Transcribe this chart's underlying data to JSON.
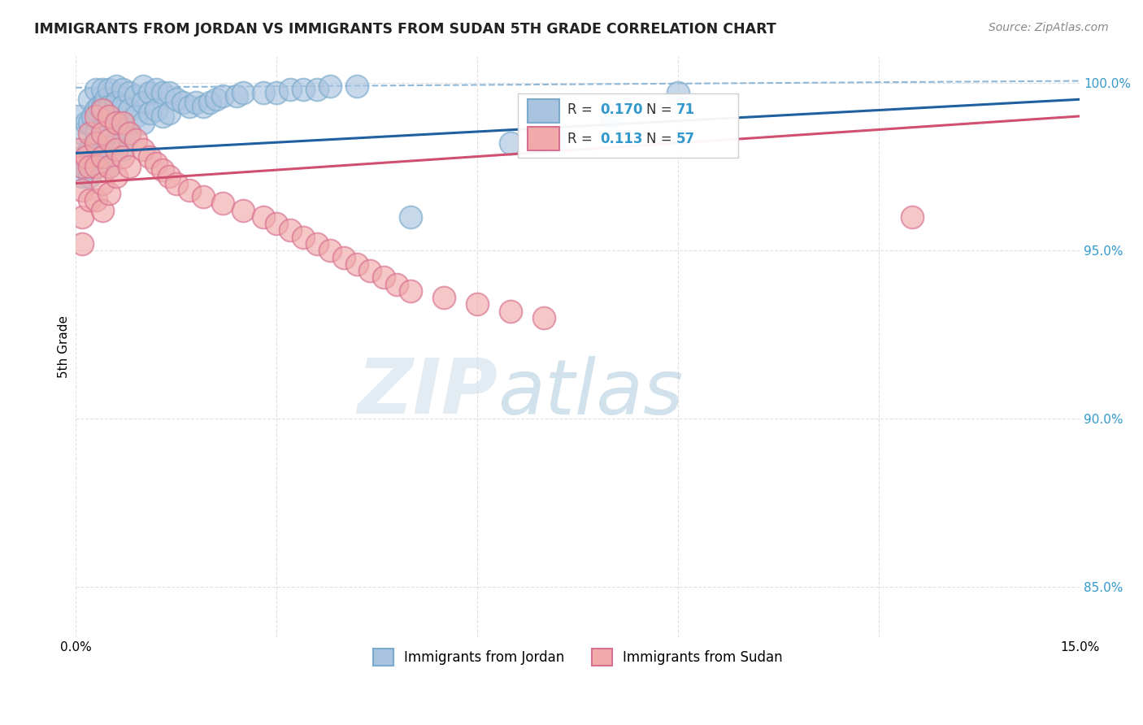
{
  "title": "IMMIGRANTS FROM JORDAN VS IMMIGRANTS FROM SUDAN 5TH GRADE CORRELATION CHART",
  "source_text": "Source: ZipAtlas.com",
  "ylabel": "5th Grade",
  "xlim": [
    0.0,
    0.15
  ],
  "ylim": [
    0.835,
    1.008
  ],
  "yticks": [
    0.85,
    0.9,
    0.95,
    1.0
  ],
  "yticklabels": [
    "85.0%",
    "90.0%",
    "95.0%",
    "100.0%"
  ],
  "background_color": "#ffffff",
  "grid_color": "#dddddd",
  "jordan_color": "#aac4e0",
  "jordan_edge_color": "#7aabcc",
  "sudan_color": "#f0aaaa",
  "sudan_edge_color": "#d87090",
  "jordan_line_color": "#2060a0",
  "sudan_line_color": "#d05070",
  "dashed_line_color": "#90b8d8",
  "watermark_zip": "ZIP",
  "watermark_atlas": "atlas",
  "jordan_x": [
    0.0005,
    0.001,
    0.001,
    0.001,
    0.0015,
    0.0015,
    0.002,
    0.002,
    0.002,
    0.002,
    0.0025,
    0.003,
    0.003,
    0.003,
    0.003,
    0.0035,
    0.004,
    0.004,
    0.004,
    0.004,
    0.0045,
    0.005,
    0.005,
    0.005,
    0.005,
    0.005,
    0.006,
    0.006,
    0.006,
    0.006,
    0.007,
    0.007,
    0.007,
    0.007,
    0.008,
    0.008,
    0.008,
    0.009,
    0.009,
    0.01,
    0.01,
    0.01,
    0.011,
    0.011,
    0.012,
    0.012,
    0.013,
    0.013,
    0.014,
    0.014,
    0.015,
    0.016,
    0.017,
    0.018,
    0.019,
    0.02,
    0.021,
    0.022,
    0.024,
    0.025,
    0.028,
    0.03,
    0.032,
    0.034,
    0.036,
    0.038,
    0.042,
    0.05,
    0.065,
    0.08,
    0.09
  ],
  "jordan_y": [
    0.99,
    0.985,
    0.978,
    0.972,
    0.988,
    0.975,
    0.995,
    0.988,
    0.98,
    0.972,
    0.99,
    0.998,
    0.992,
    0.985,
    0.978,
    0.993,
    0.998,
    0.993,
    0.986,
    0.978,
    0.995,
    0.998,
    0.993,
    0.987,
    0.981,
    0.975,
    0.999,
    0.994,
    0.988,
    0.982,
    0.998,
    0.993,
    0.987,
    0.98,
    0.997,
    0.992,
    0.985,
    0.996,
    0.99,
    0.999,
    0.994,
    0.988,
    0.997,
    0.991,
    0.998,
    0.992,
    0.997,
    0.99,
    0.997,
    0.991,
    0.995,
    0.994,
    0.993,
    0.994,
    0.993,
    0.994,
    0.995,
    0.996,
    0.996,
    0.997,
    0.997,
    0.997,
    0.998,
    0.998,
    0.998,
    0.999,
    0.999,
    0.96,
    0.982,
    0.99,
    0.997
  ],
  "sudan_x": [
    0.0005,
    0.001,
    0.001,
    0.001,
    0.001,
    0.0015,
    0.002,
    0.002,
    0.002,
    0.003,
    0.003,
    0.003,
    0.003,
    0.004,
    0.004,
    0.004,
    0.004,
    0.004,
    0.005,
    0.005,
    0.005,
    0.005,
    0.006,
    0.006,
    0.006,
    0.007,
    0.007,
    0.008,
    0.008,
    0.009,
    0.01,
    0.011,
    0.012,
    0.013,
    0.014,
    0.015,
    0.017,
    0.019,
    0.022,
    0.025,
    0.028,
    0.03,
    0.032,
    0.034,
    0.036,
    0.038,
    0.04,
    0.042,
    0.044,
    0.046,
    0.048,
    0.05,
    0.055,
    0.06,
    0.065,
    0.07,
    0.125
  ],
  "sudan_y": [
    0.98,
    0.975,
    0.968,
    0.96,
    0.952,
    0.978,
    0.985,
    0.975,
    0.965,
    0.99,
    0.982,
    0.975,
    0.965,
    0.992,
    0.985,
    0.978,
    0.97,
    0.962,
    0.99,
    0.983,
    0.975,
    0.967,
    0.988,
    0.98,
    0.972,
    0.988,
    0.978,
    0.985,
    0.975,
    0.983,
    0.98,
    0.978,
    0.976,
    0.974,
    0.972,
    0.97,
    0.968,
    0.966,
    0.964,
    0.962,
    0.96,
    0.958,
    0.956,
    0.954,
    0.952,
    0.95,
    0.948,
    0.946,
    0.944,
    0.942,
    0.94,
    0.938,
    0.936,
    0.934,
    0.932,
    0.93,
    0.96
  ],
  "jordan_trend_x": [
    0.0,
    0.15
  ],
  "jordan_trend_y": [
    0.979,
    0.995
  ],
  "sudan_trend_x": [
    0.0,
    0.15
  ],
  "sudan_trend_y": [
    0.97,
    0.99
  ],
  "dashed_trend_x": [
    0.0,
    0.15
  ],
  "dashed_trend_y": [
    0.9985,
    1.0005
  ]
}
